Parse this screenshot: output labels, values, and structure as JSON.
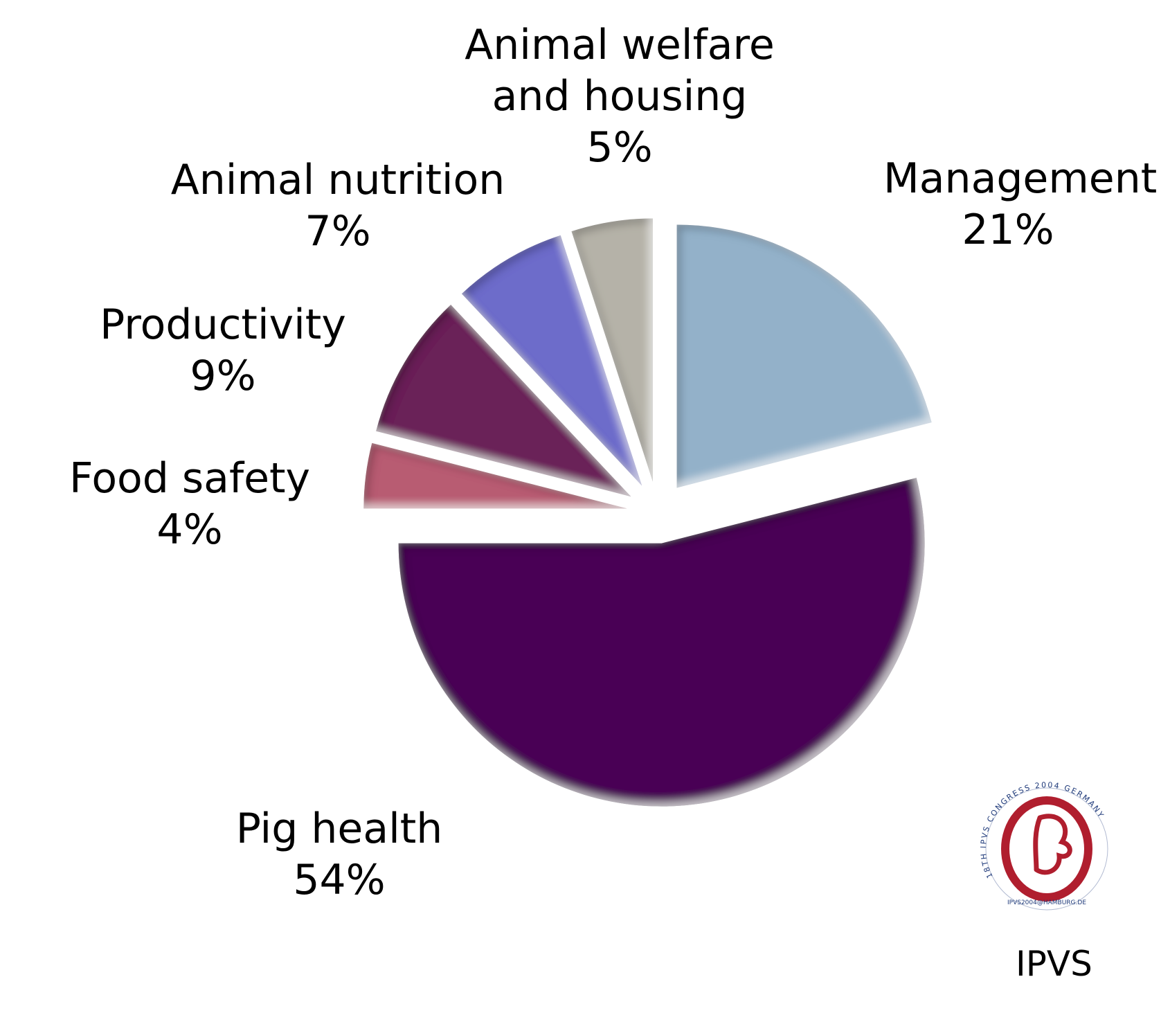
{
  "chart_data": {
    "type": "pie",
    "exploded": true,
    "slices": [
      {
        "label": "Management",
        "value": 21,
        "value_label": "21%",
        "color": "#93b1c9"
      },
      {
        "label": "Pig health",
        "value": 54,
        "value_label": "54%",
        "color": "#4a0055"
      },
      {
        "label": "Food safety",
        "value": 4,
        "value_label": "4%",
        "color": "#b85b72"
      },
      {
        "label": "Productivity",
        "value": 9,
        "value_label": "9%",
        "color": "#6a2358"
      },
      {
        "label": "Animal nutrition",
        "value": 7,
        "value_label": "7%",
        "color": "#6d6cca"
      },
      {
        "label": "Animal welfare and housing",
        "label_lines": [
          "Animal welfare",
          "and housing"
        ],
        "value": 5,
        "value_label": "5%",
        "color": "#b5b2a8"
      }
    ]
  },
  "logo": {
    "text": "IPVS",
    "ring_text": "18TH IPVS CONGRESS 2004 GERMANY",
    "ring_subtext": "IPVS2004@HAMBURG.DE",
    "accent_color": "#b01e2e",
    "ring_text_color": "#1f3a7a"
  }
}
